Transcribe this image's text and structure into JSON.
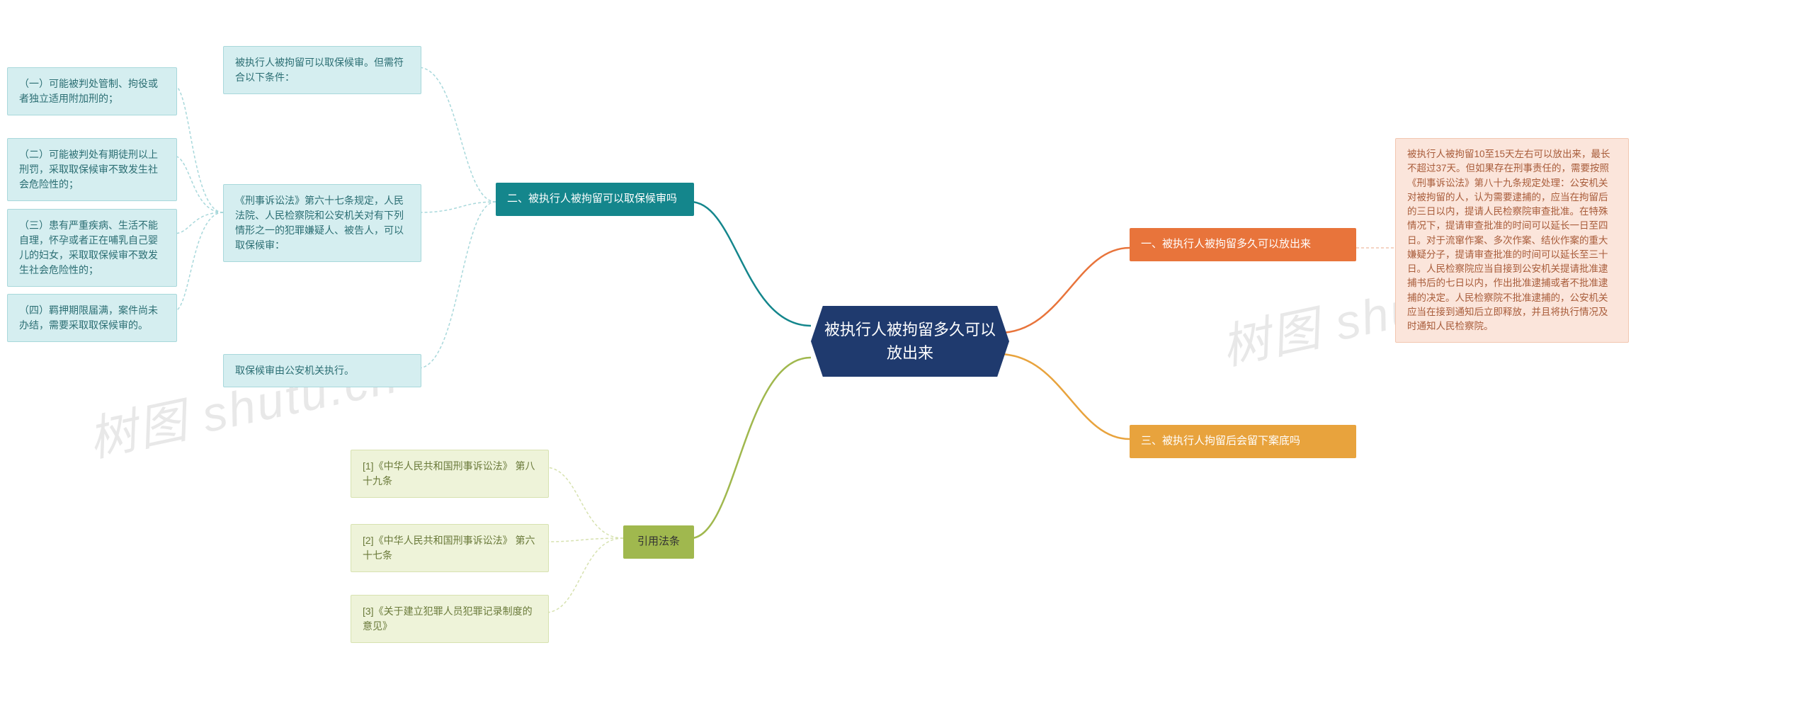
{
  "root": {
    "title": "被执行人被拘留多久可以\n放出来"
  },
  "right": {
    "b1": {
      "label": "一、被执行人被拘留多久可以放出来"
    },
    "b1_detail": "被执行人被拘留10至15天左右可以放出来，最长不超过37天。但如果存在刑事责任的，需要按照《刑事诉讼法》第八十九条规定处理：公安机关对被拘留的人，认为需要逮捕的，应当在拘留后的三日以内，提请人民检察院审查批准。在特殊情况下，提请审查批准的时间可以延长一日至四日。对于流窜作案、多次作案、结伙作案的重大嫌疑分子，提请审查批准的时间可以延长至三十日。人民检察院应当自接到公安机关提请批准逮捕书后的七日以内，作出批准逮捕或者不批准逮捕的决定。人民检察院不批准逮捕的，公安机关应当在接到通知后立即释放，并且将执行情况及时通知人民检察院。",
    "b3": {
      "label": "三、被执行人拘留后会留下案底吗"
    }
  },
  "left": {
    "b2": {
      "label": "二、被执行人被拘留可以取保候审吗"
    },
    "b2_c1": "被执行人被拘留可以取保候审。但需符合以下条件：",
    "b2_c2": "《刑事诉讼法》第六十七条规定，人民法院、人民检察院和公安机关对有下列情形之一的犯罪嫌疑人、被告人，可以取保候审：",
    "b2_c2_items": {
      "i1": "（一）可能被判处管制、拘役或者独立适用附加刑的；",
      "i2": "（二）可能被判处有期徒刑以上刑罚，采取取保候审不致发生社会危险性的；",
      "i3": "（三）患有严重疾病、生活不能自理，怀孕或者正在哺乳自己婴儿的妇女，采取取保候审不致发生社会危险性的；",
      "i4": "（四）羁押期限届满，案件尚未办结，需要采取取保候审的。"
    },
    "b2_c3": "取保候审由公安机关执行。",
    "b_ref": {
      "label": "引用法条"
    },
    "b_ref_items": {
      "r1": "[1]《中华人民共和国刑事诉讼法》 第八十九条",
      "r2": "[2]《中华人民共和国刑事诉讼法》 第六十七条",
      "r3": "[3]《关于建立犯罪人员犯罪记录制度的意见》"
    }
  },
  "watermarks": {
    "w1": "树图 shutu.cn",
    "w2": "树图 shutu.cn"
  },
  "colors": {
    "root_bg": "#1f3a6e",
    "orange": "#e8743b",
    "teal": "#14868c",
    "olive": "#a0b84e",
    "yellow": "#e8a33d",
    "peach_leaf": "#fbe5db",
    "teal_leaf": "#d5eef0",
    "olive_leaf": "#eef3d9",
    "conn_orange": "#e8743b",
    "conn_teal": "#14868c",
    "conn_olive": "#a0b84e",
    "conn_yellow": "#e8a33d",
    "conn_teal_light": "#a8d8db",
    "conn_olive_light": "#d7e2b0"
  }
}
